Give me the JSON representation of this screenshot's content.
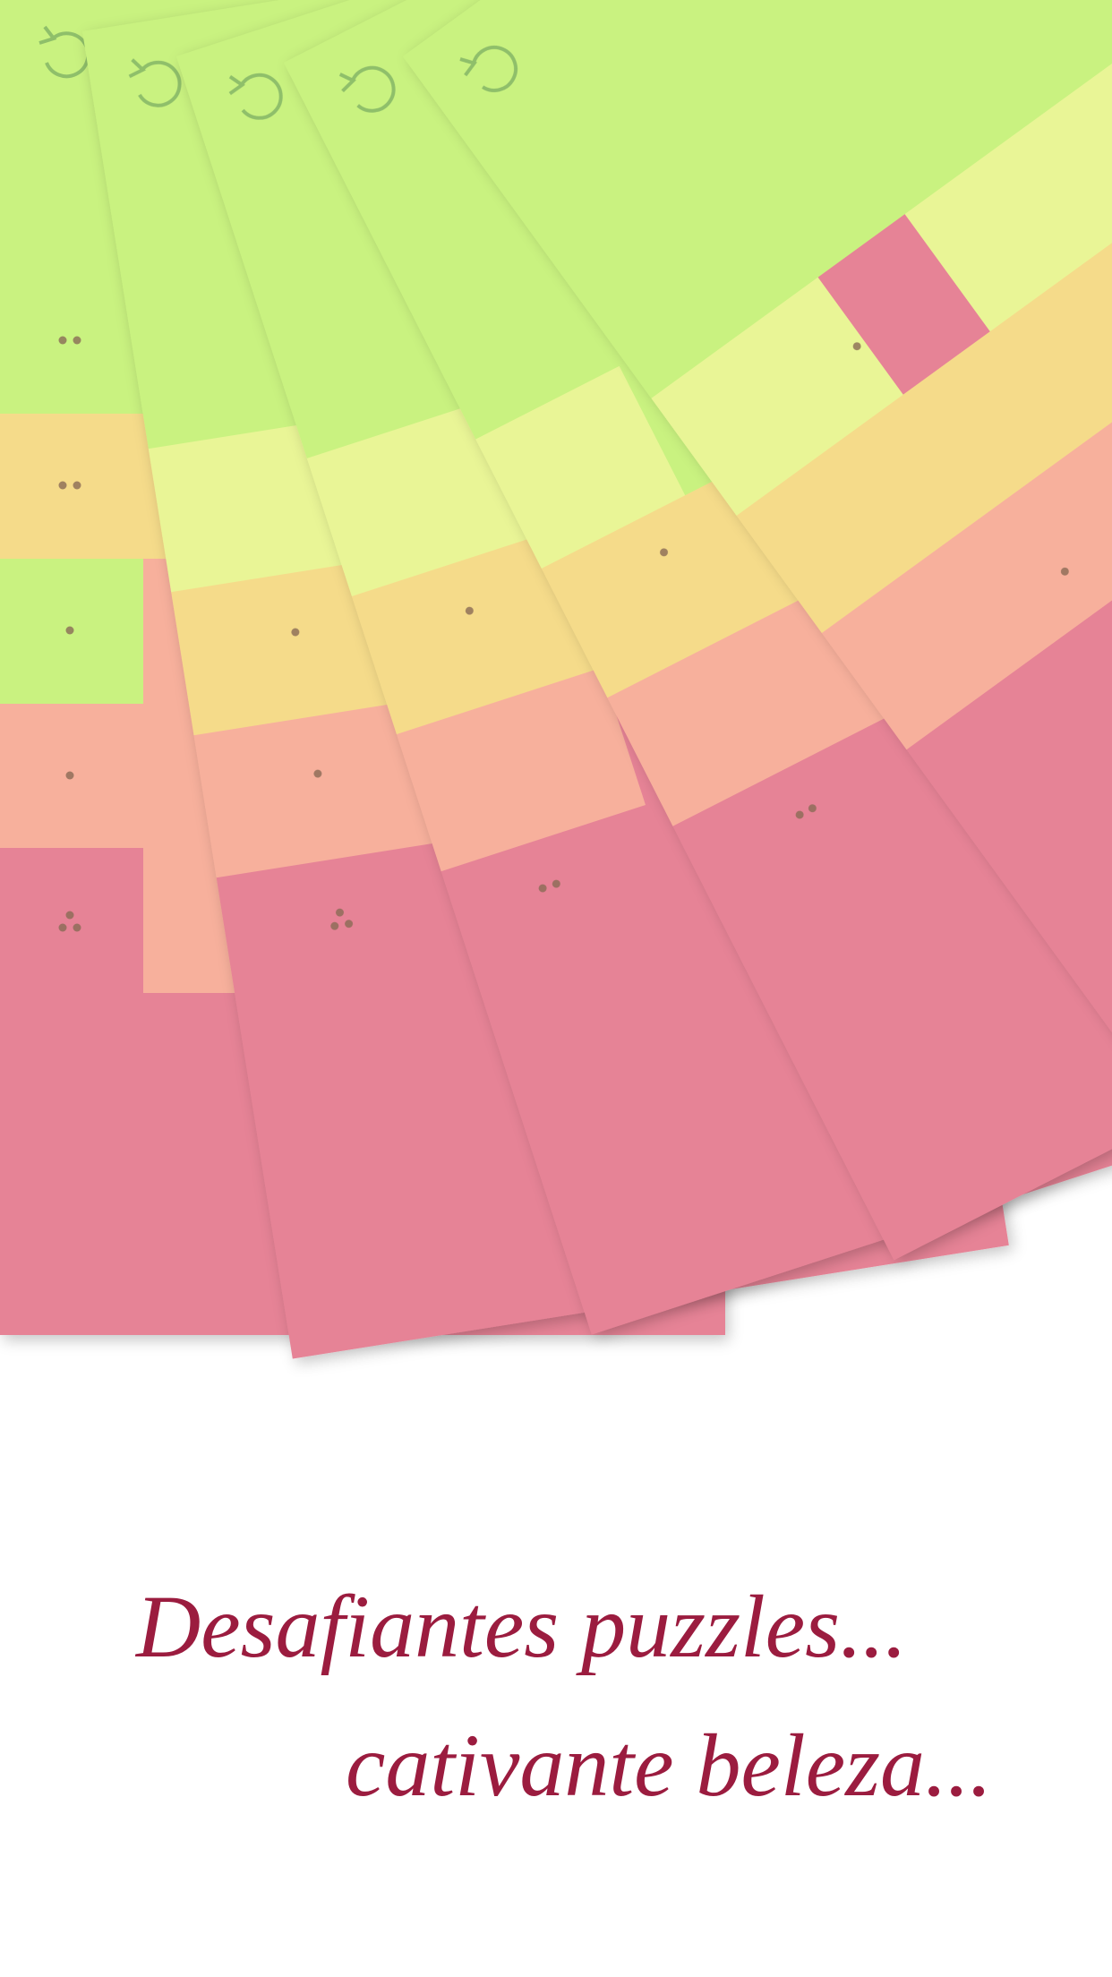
{
  "tagline": {
    "line1": "Desafiantes puzzles...",
    "line2": "cativante beleza..."
  }
}
